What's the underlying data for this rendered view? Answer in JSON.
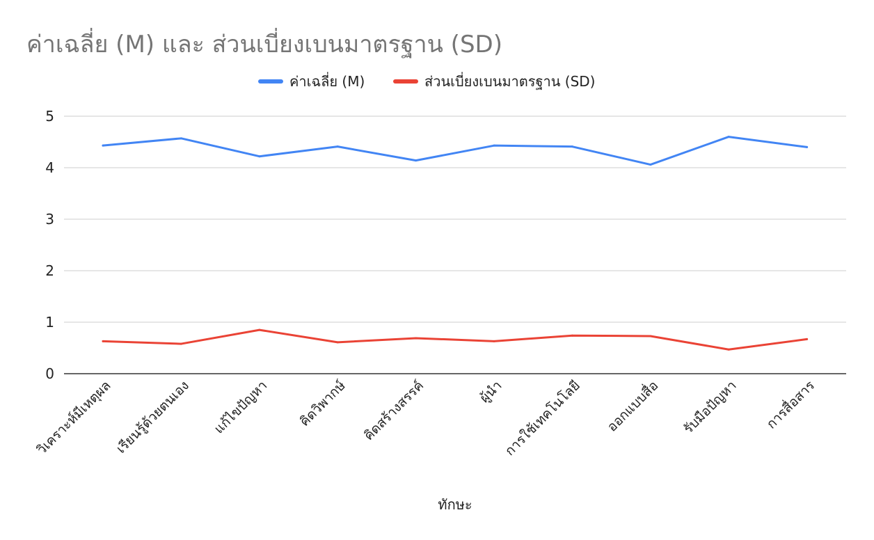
{
  "chart_data": {
    "type": "line",
    "title": "ค่าเฉลี่ย (M) และ ส่วนเบี่ยงเบนมาตรฐาน (SD)",
    "xlabel": "ทักษะ",
    "ylabel": "",
    "ylim": [
      0,
      5
    ],
    "yticks": [
      "0",
      "1",
      "2",
      "3",
      "4",
      "5"
    ],
    "grid": true,
    "legend_position": "top",
    "categories": [
      "วิเคราะห์มีเหตุผล",
      "เรียนรู้ด้วยตนเอง",
      "แก้ไขปัญหา",
      "คิดวิพากษ์",
      "คิดสร้างสรรค์",
      "ผู้นำ",
      "การใช้เทคโนโลยี",
      "ออกแบบสื่อ",
      "รับมือปัญหา",
      "การสื่อสาร"
    ],
    "series": [
      {
        "name": "ค่าเฉลี่ย (M)",
        "color": "#4285F4",
        "values": [
          4.43,
          4.57,
          4.22,
          4.41,
          4.14,
          4.43,
          4.41,
          4.06,
          4.6,
          4.4
        ]
      },
      {
        "name": "ส่วนเบี่ยงเบนมาตรฐาน (SD)",
        "color": "#EA4335",
        "values": [
          0.63,
          0.58,
          0.85,
          0.61,
          0.69,
          0.63,
          0.74,
          0.73,
          0.47,
          0.67
        ]
      }
    ]
  }
}
